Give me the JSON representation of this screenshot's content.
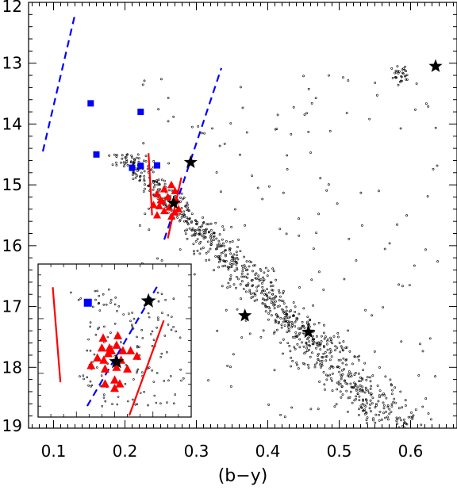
{
  "chart_data": {
    "type": "scatter",
    "title": "",
    "xlabel": "(b−y)",
    "ylabel": "",
    "xlim": [
      0.065,
      0.665
    ],
    "ylim": [
      19.0,
      12.0
    ],
    "y_inverted": true,
    "x_ticks": [
      0.1,
      0.2,
      0.3,
      0.4,
      0.5,
      0.6
    ],
    "x_tick_labels": [
      "0.1",
      "0.2",
      "0.3",
      "0.4",
      "0.5",
      "0.6"
    ],
    "y_ticks": [
      12,
      13,
      14,
      15,
      16,
      17,
      18,
      19
    ],
    "y_tick_labels": [
      "12",
      "13",
      "14",
      "15",
      "16",
      "17",
      "18",
      "19"
    ],
    "grid": false,
    "legend": "none",
    "colors": {
      "squares": "#0000ff",
      "triangles": "#ff0000",
      "stars": "#000000",
      "field_dots": "#000000",
      "blue_dashed_line": "#0000ff",
      "red_solid_line": "#ff0000"
    },
    "series": [
      {
        "marker": "square",
        "color": "#0000ff",
        "points": [
          [
            0.152,
            13.66
          ],
          [
            0.222,
            13.8
          ],
          [
            0.16,
            14.5
          ],
          [
            0.21,
            14.72
          ],
          [
            0.222,
            14.69
          ],
          [
            0.245,
            14.68
          ]
        ]
      },
      {
        "marker": "triangle",
        "color": "#ff0000",
        "points": [
          [
            0.255,
            15.07
          ],
          [
            0.265,
            15.0
          ],
          [
            0.27,
            15.1
          ],
          [
            0.245,
            15.15
          ],
          [
            0.26,
            15.2
          ],
          [
            0.252,
            15.27
          ],
          [
            0.272,
            15.25
          ],
          [
            0.248,
            15.35
          ],
          [
            0.262,
            15.37
          ],
          [
            0.24,
            15.33
          ],
          [
            0.27,
            15.45
          ],
          [
            0.255,
            15.43
          ],
          [
            0.265,
            15.52
          ],
          [
            0.245,
            15.5
          ],
          [
            0.275,
            15.4
          ],
          [
            0.25,
            15.25
          ]
        ]
      },
      {
        "marker": "star",
        "color": "#000000",
        "points": [
          [
            0.292,
            14.63
          ],
          [
            0.268,
            15.3
          ],
          [
            0.368,
            17.15
          ],
          [
            0.457,
            17.42
          ],
          [
            0.635,
            13.05
          ]
        ]
      }
    ],
    "lines": [
      {
        "style": "dashed",
        "color": "#0000ff",
        "points": [
          [
            0.085,
            14.45
          ],
          [
            0.13,
            12.2
          ]
        ]
      },
      {
        "style": "dashed",
        "color": "#0000ff",
        "points": [
          [
            0.255,
            15.9
          ],
          [
            0.335,
            13.08
          ]
        ]
      },
      {
        "style": "solid",
        "color": "#ff0000",
        "points": [
          [
            0.233,
            14.48
          ],
          [
            0.238,
            15.5
          ]
        ]
      },
      {
        "style": "solid",
        "color": "#ff0000",
        "points": [
          [
            0.279,
            14.88
          ],
          [
            0.26,
            15.88
          ]
        ]
      }
    ],
    "inset": {
      "type": "scatter",
      "axis_labels": "none",
      "squares": [
        [
          0.113,
          16.78
        ]
      ],
      "triangles": [
        [
          0.137,
          17.42
        ],
        [
          0.135,
          17.6
        ],
        [
          0.147,
          17.6
        ],
        [
          0.15,
          17.65
        ],
        [
          0.16,
          17.38
        ],
        [
          0.158,
          17.55
        ],
        [
          0.145,
          17.7
        ],
        [
          0.138,
          17.82
        ],
        [
          0.118,
          17.92
        ],
        [
          0.128,
          17.78
        ],
        [
          0.14,
          17.98
        ],
        [
          0.158,
          17.95
        ],
        [
          0.165,
          17.82
        ],
        [
          0.175,
          17.98
        ],
        [
          0.19,
          17.75
        ],
        [
          0.18,
          17.65
        ],
        [
          0.168,
          17.65
        ],
        [
          0.155,
          18.18
        ],
        [
          0.163,
          18.25
        ],
        [
          0.14,
          18.25
        ],
        [
          0.155,
          18.33
        ]
      ],
      "stars": [
        [
          0.208,
          16.75
        ],
        [
          0.158,
          17.85
        ]
      ],
      "lines": [
        {
          "style": "dashed",
          "color": "#0000ff",
          "points": [
            [
              0.112,
              18.65
            ],
            [
              0.225,
              16.42
            ]
          ]
        },
        {
          "style": "solid",
          "color": "#ff0000",
          "points": [
            [
              0.058,
              16.5
            ],
            [
              0.07,
              18.22
            ]
          ]
        },
        {
          "style": "solid",
          "color": "#ff0000",
          "points": [
            [
              0.178,
              18.82
            ],
            [
              0.232,
              17.1
            ]
          ]
        }
      ]
    }
  }
}
